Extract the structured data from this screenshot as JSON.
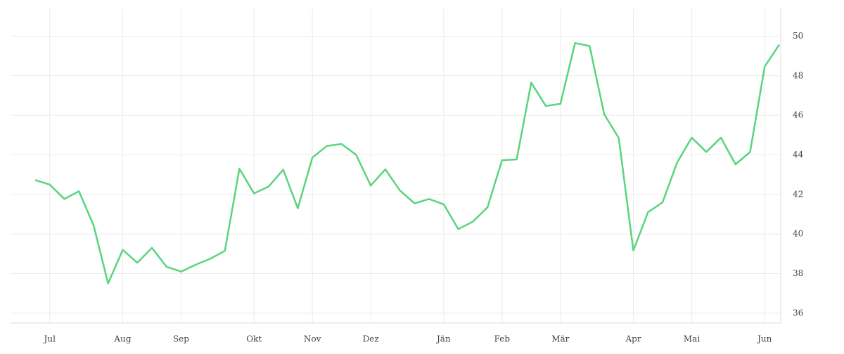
{
  "chart_data": {
    "type": "line",
    "categories": [
      null,
      "Jul",
      null,
      null,
      null,
      null,
      "Aug",
      null,
      null,
      null,
      "Sep",
      null,
      null,
      null,
      null,
      "Okt",
      null,
      null,
      null,
      "Nov",
      null,
      null,
      null,
      "Dez",
      null,
      null,
      null,
      null,
      "Jän",
      null,
      null,
      null,
      "Feb",
      null,
      null,
      null,
      "Mär",
      null,
      null,
      null,
      null,
      "Apr",
      null,
      null,
      null,
      "Mai",
      null,
      null,
      null,
      null,
      "Jun",
      null
    ],
    "series": [
      {
        "color": "#5ad47e",
        "values": [
          42.73,
          42.5,
          41.77,
          42.16,
          40.45,
          37.5,
          39.2,
          38.55,
          39.3,
          38.35,
          38.1,
          38.45,
          38.75,
          39.15,
          43.3,
          42.05,
          42.4,
          43.25,
          41.3,
          43.87,
          44.45,
          44.55,
          44.0,
          42.45,
          43.27,
          42.2,
          41.55,
          41.77,
          41.5,
          40.25,
          40.63,
          41.35,
          43.73,
          43.77,
          47.65,
          46.47,
          46.58,
          49.65,
          49.5,
          46.05,
          44.85,
          39.17,
          41.1,
          41.6,
          43.62,
          44.87,
          44.15,
          44.87,
          43.52,
          44.15,
          48.47,
          49.57
        ]
      }
    ],
    "ylim": [
      35.5,
      51.4
    ],
    "yticks": [
      36,
      38,
      40,
      42,
      44,
      46,
      48,
      50
    ],
    "grid": true
  }
}
